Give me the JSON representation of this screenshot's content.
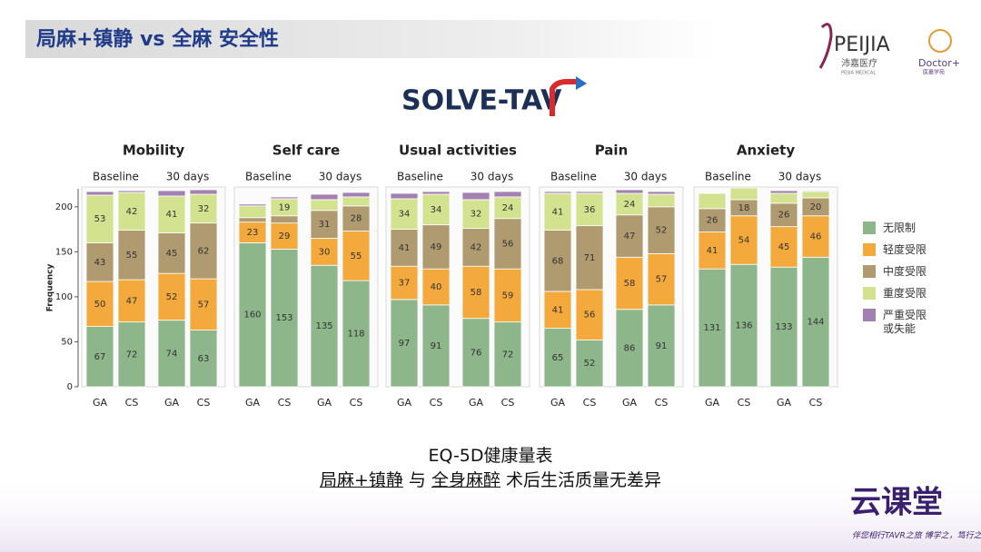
{
  "header": {
    "title": "局麻+镇静 vs 全麻 安全性",
    "logo": "SOLVE-TAV",
    "brand": "PEIJIA",
    "brand_cn": "沛嘉医疗",
    "brand_en": "PEIJIA MEDICAL",
    "doctor": "Doctor+",
    "doctor_cn": "医嘉学苑"
  },
  "chart_data": [
    {
      "type": "stacked_bar",
      "title": "Mobility",
      "groups": [
        "Baseline",
        "30 days"
      ],
      "categories": [
        "GA",
        "CS",
        "GA",
        "CS"
      ],
      "ylabel": "Frequency",
      "ylim": [
        0,
        220
      ],
      "yticks": [
        0,
        50,
        100,
        150,
        200
      ],
      "series": [
        {
          "name": "无限制",
          "color": "#8db68b",
          "values": [
            67,
            72,
            74,
            63
          ]
        },
        {
          "name": "轻度受限",
          "color": "#f4a93c",
          "values": [
            50,
            47,
            52,
            57
          ]
        },
        {
          "name": "中度受限",
          "color": "#b09b70",
          "values": [
            43,
            55,
            45,
            62
          ]
        },
        {
          "name": "重度受限",
          "color": "#d2e28f",
          "values": [
            53,
            42,
            41,
            32
          ]
        },
        {
          "name": "严重受限或失能",
          "color": "#a37fb2",
          "values": [
            4,
            2,
            6,
            5
          ]
        }
      ]
    },
    {
      "type": "stacked_bar",
      "title": "Self care",
      "groups": [
        "Baseline",
        "30 days"
      ],
      "categories": [
        "GA",
        "CS",
        "GA",
        "CS"
      ],
      "ylim": [
        0,
        220
      ],
      "series": [
        {
          "name": "无限制",
          "color": "#8db68b",
          "values": [
            160,
            153,
            135,
            118
          ]
        },
        {
          "name": "轻度受限",
          "color": "#f4a93c",
          "values": [
            23,
            29,
            30,
            55
          ]
        },
        {
          "name": "中度受限",
          "color": "#b09b70",
          "values": [
            5,
            8,
            31,
            28
          ]
        },
        {
          "name": "重度受限",
          "color": "#d2e28f",
          "values": [
            13,
            19,
            12,
            10
          ]
        },
        {
          "name": "严重受限或失能",
          "color": "#a37fb2",
          "values": [
            2,
            2,
            6,
            5
          ]
        }
      ]
    },
    {
      "type": "stacked_bar",
      "title": "Usual activities",
      "groups": [
        "Baseline",
        "30 days"
      ],
      "categories": [
        "GA",
        "CS",
        "GA",
        "CS"
      ],
      "ylim": [
        0,
        220
      ],
      "series": [
        {
          "name": "无限制",
          "color": "#8db68b",
          "values": [
            97,
            91,
            76,
            72
          ]
        },
        {
          "name": "轻度受限",
          "color": "#f4a93c",
          "values": [
            37,
            40,
            58,
            59
          ]
        },
        {
          "name": "中度受限",
          "color": "#b09b70",
          "values": [
            41,
            49,
            42,
            56
          ]
        },
        {
          "name": "重度受限",
          "color": "#d2e28f",
          "values": [
            34,
            34,
            32,
            24
          ]
        },
        {
          "name": "严重受限或失能",
          "color": "#a37fb2",
          "values": [
            6,
            3,
            8,
            6
          ]
        }
      ]
    },
    {
      "type": "stacked_bar",
      "title": "Pain",
      "groups": [
        "Baseline",
        "30 days"
      ],
      "categories": [
        "GA",
        "CS",
        "GA",
        "CS"
      ],
      "ylim": [
        0,
        220
      ],
      "series": [
        {
          "name": "无限制",
          "color": "#8db68b",
          "values": [
            65,
            52,
            86,
            91
          ]
        },
        {
          "name": "轻度受限",
          "color": "#f4a93c",
          "values": [
            41,
            56,
            58,
            57
          ]
        },
        {
          "name": "中度受限",
          "color": "#b09b70",
          "values": [
            68,
            71,
            47,
            52
          ]
        },
        {
          "name": "重度受限",
          "color": "#d2e28f",
          "values": [
            41,
            36,
            24,
            14
          ]
        },
        {
          "name": "严重受限或失能",
          "color": "#a37fb2",
          "values": [
            2,
            2,
            4,
            3
          ]
        }
      ]
    },
    {
      "type": "stacked_bar",
      "title": "Anxiety",
      "groups": [
        "Baseline",
        "30 days"
      ],
      "categories": [
        "GA",
        "CS",
        "GA",
        "CS"
      ],
      "ylim": [
        0,
        220
      ],
      "series": [
        {
          "name": "无限制",
          "color": "#8db68b",
          "values": [
            131,
            136,
            133,
            144
          ]
        },
        {
          "name": "轻度受限",
          "color": "#f4a93c",
          "values": [
            41,
            54,
            45,
            46
          ]
        },
        {
          "name": "中度受限",
          "color": "#b09b70",
          "values": [
            26,
            18,
            26,
            20
          ]
        },
        {
          "name": "重度受限",
          "color": "#d2e28f",
          "values": [
            17,
            13,
            11,
            7
          ]
        },
        {
          "name": "严重受限或失能",
          "color": "#a37fb2",
          "values": [
            0,
            0,
            3,
            1
          ]
        }
      ]
    }
  ],
  "caption": {
    "line1": "EQ-5D健康量表",
    "a": "局麻+镇静",
    "and": "与",
    "b": "全身麻醉",
    "rest": "术后生活质量无差异"
  },
  "footer": {
    "brand": "云课堂",
    "slogan": "伴您相行TAVR之旅 博学之，笃行之"
  }
}
